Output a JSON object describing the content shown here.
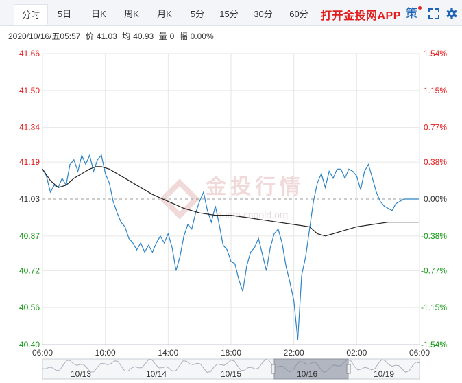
{
  "tabs": [
    {
      "label": "分时",
      "active": true
    },
    {
      "label": "5日"
    },
    {
      "label": "日K"
    },
    {
      "label": "周K"
    },
    {
      "label": "月K"
    },
    {
      "label": "5分"
    },
    {
      "label": "15分"
    },
    {
      "label": "30分"
    },
    {
      "label": "60分"
    }
  ],
  "promo": "打开金投网APP",
  "icons": {
    "strategy": "策",
    "fullscreen": "fullscreen-icon",
    "settings": "gear-icon"
  },
  "info": {
    "datetime": "2020/10/16/五05:57",
    "price_label": "价",
    "price": "41.03",
    "avg_label": "均",
    "avg": "40.93",
    "vol_label": "量",
    "vol": "0",
    "chg_label": "幅",
    "chg": "0.00%"
  },
  "watermark": {
    "brand": "金投行情",
    "site": "quote.cngold.org"
  },
  "colors": {
    "up": "#e11d1d",
    "down": "#119911",
    "price_line": "#2b83c6",
    "avg_line": "#222222",
    "grid": "#e6e6e6"
  },
  "chart_data": {
    "type": "line",
    "left_axis": [
      "41.66",
      "41.50",
      "41.34",
      "41.19",
      "41.03",
      "40.87",
      "40.72",
      "40.56",
      "40.40"
    ],
    "right_axis": [
      "1.54%",
      "1.15%",
      "0.77%",
      "0.38%",
      "0.00%",
      "-0.38%",
      "-0.77%",
      "-1.15%",
      "-1.54%"
    ],
    "ylim": [
      40.4,
      41.66
    ],
    "reference_price": 41.03,
    "x_ticks": [
      "06:00",
      "10:00",
      "14:00",
      "18:00",
      "22:00",
      "02:00",
      "06:00"
    ],
    "x_range_hours": [
      0,
      24
    ],
    "series": [
      {
        "values_price": [
          [
            0.0,
            41.16
          ],
          [
            0.25,
            41.13
          ],
          [
            0.5,
            41.06
          ],
          [
            0.75,
            41.09
          ],
          [
            1.0,
            41.08
          ],
          [
            1.25,
            41.12
          ],
          [
            1.5,
            41.09
          ],
          [
            1.75,
            41.18
          ],
          [
            2.0,
            41.2
          ],
          [
            2.25,
            41.15
          ],
          [
            2.5,
            41.22
          ],
          [
            2.75,
            41.18
          ],
          [
            3.0,
            41.22
          ],
          [
            3.25,
            41.15
          ],
          [
            3.5,
            41.2
          ],
          [
            3.75,
            41.22
          ],
          [
            4.0,
            41.14
          ],
          [
            4.25,
            41.1
          ],
          [
            4.5,
            41.02
          ],
          [
            4.75,
            40.97
          ],
          [
            5.0,
            40.93
          ],
          [
            5.25,
            40.91
          ],
          [
            5.5,
            40.86
          ],
          [
            5.75,
            40.84
          ],
          [
            6.0,
            40.81
          ],
          [
            6.25,
            40.84
          ],
          [
            6.5,
            40.8
          ],
          [
            6.75,
            40.83
          ],
          [
            7.0,
            40.8
          ],
          [
            7.25,
            40.84
          ],
          [
            7.5,
            40.87
          ],
          [
            7.75,
            40.84
          ],
          [
            8.0,
            40.88
          ],
          [
            8.25,
            40.82
          ],
          [
            8.5,
            40.72
          ],
          [
            8.75,
            40.78
          ],
          [
            9.0,
            40.87
          ],
          [
            9.25,
            40.92
          ],
          [
            9.5,
            40.9
          ],
          [
            9.75,
            40.97
          ],
          [
            10.0,
            41.02
          ],
          [
            10.25,
            41.06
          ],
          [
            10.5,
            40.98
          ],
          [
            10.75,
            40.93
          ],
          [
            11.0,
            41.0
          ],
          [
            11.25,
            40.92
          ],
          [
            11.5,
            40.83
          ],
          [
            11.75,
            40.81
          ],
          [
            12.0,
            40.76
          ],
          [
            12.25,
            40.75
          ],
          [
            12.5,
            40.68
          ],
          [
            12.75,
            40.63
          ],
          [
            13.0,
            40.74
          ],
          [
            13.25,
            40.8
          ],
          [
            13.5,
            40.82
          ],
          [
            13.75,
            40.86
          ],
          [
            14.0,
            40.79
          ],
          [
            14.25,
            40.72
          ],
          [
            14.5,
            40.82
          ],
          [
            14.75,
            40.88
          ],
          [
            15.0,
            40.9
          ],
          [
            15.25,
            40.84
          ],
          [
            15.5,
            40.74
          ],
          [
            15.75,
            40.67
          ],
          [
            16.0,
            40.59
          ],
          [
            16.25,
            40.42
          ],
          [
            16.5,
            40.7
          ],
          [
            16.75,
            40.78
          ],
          [
            17.0,
            40.9
          ],
          [
            17.25,
            41.02
          ],
          [
            17.5,
            41.1
          ],
          [
            17.75,
            41.14
          ],
          [
            18.0,
            41.08
          ],
          [
            18.25,
            41.15
          ],
          [
            18.5,
            41.12
          ],
          [
            18.75,
            41.16
          ],
          [
            19.0,
            41.16
          ],
          [
            19.25,
            41.12
          ],
          [
            19.5,
            41.16
          ],
          [
            19.75,
            41.15
          ],
          [
            20.0,
            41.13
          ],
          [
            20.25,
            41.07
          ],
          [
            20.5,
            41.15
          ],
          [
            20.75,
            41.18
          ],
          [
            21.0,
            41.12
          ],
          [
            21.25,
            41.06
          ],
          [
            21.5,
            41.02
          ],
          [
            21.75,
            41.0
          ],
          [
            22.0,
            40.99
          ],
          [
            22.25,
            40.98
          ],
          [
            22.5,
            41.01
          ],
          [
            22.75,
            41.02
          ],
          [
            23.0,
            41.03
          ],
          [
            23.25,
            41.03
          ],
          [
            23.5,
            41.03
          ],
          [
            23.75,
            41.03
          ],
          [
            23.95,
            41.03
          ]
        ]
      },
      {
        "values_avg": [
          [
            0.0,
            41.16
          ],
          [
            0.5,
            41.11
          ],
          [
            1.0,
            41.08
          ],
          [
            1.5,
            41.09
          ],
          [
            2.0,
            41.12
          ],
          [
            2.5,
            41.14
          ],
          [
            3.0,
            41.16
          ],
          [
            3.4,
            41.17
          ],
          [
            3.75,
            41.17
          ],
          [
            4.25,
            41.16
          ],
          [
            5.0,
            41.13
          ],
          [
            6.0,
            41.09
          ],
          [
            7.0,
            41.05
          ],
          [
            8.0,
            41.02
          ],
          [
            9.0,
            40.99
          ],
          [
            10.0,
            40.97
          ],
          [
            11.0,
            40.96
          ],
          [
            12.0,
            40.96
          ],
          [
            13.0,
            40.95
          ],
          [
            14.0,
            40.94
          ],
          [
            15.0,
            40.93
          ],
          [
            16.0,
            40.92
          ],
          [
            17.0,
            40.91
          ],
          [
            17.5,
            40.88
          ],
          [
            18.0,
            40.87
          ],
          [
            18.5,
            40.88
          ],
          [
            19.0,
            40.89
          ],
          [
            20.0,
            40.91
          ],
          [
            21.0,
            40.92
          ],
          [
            22.0,
            40.93
          ],
          [
            23.0,
            40.93
          ],
          [
            23.95,
            40.93
          ]
        ]
      }
    ]
  },
  "navigator": {
    "dates": [
      "10/13",
      "10/14",
      "10/15",
      "10/16",
      "10/19"
    ]
  }
}
